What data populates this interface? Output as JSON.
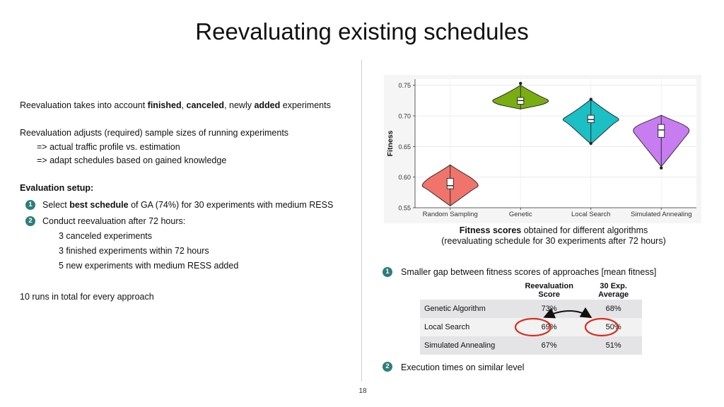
{
  "slide": {
    "title": "Reevaluating existing schedules",
    "page_number": "18"
  },
  "left": {
    "line1": {
      "pre": "Reevaluation takes into account ",
      "b1": "finished",
      "s1": ", ",
      "b2": "canceled",
      "s2": ", newly ",
      "b3": "added",
      "post": " experiments"
    },
    "line2": "Reevaluation adjusts (required) sample sizes of running experiments",
    "line3": "=> actual traffic profile vs. estimation",
    "line4": "=> adapt schedules based on gained knowledge",
    "setup_heading": "Evaluation setup:",
    "item1": {
      "badge": "1",
      "pre": "Select ",
      "bold": "best schedule",
      "post": " of GA (74%) for 30 experiments with medium RESS"
    },
    "item2": {
      "badge": "2",
      "text": "Conduct reevaluation after 72 hours:"
    },
    "sub1": "3 canceled experiments",
    "sub2": "3 finished experiments within 72 hours",
    "sub3": "5 new experiments with medium RESS added",
    "runs": "10 runs in total for every approach"
  },
  "chart_data": {
    "type": "violin",
    "title": "",
    "xlabel": "",
    "ylabel": "Fitness",
    "ylim": [
      0.55,
      0.76
    ],
    "yticks": [
      "0.55",
      "0.60",
      "0.65",
      "0.70",
      "0.75"
    ],
    "grid": true,
    "categories": [
      "Random Sampling",
      "Genetic",
      "Local Search",
      "Simulated Annealing"
    ],
    "series": [
      {
        "category": "Random Sampling",
        "color": "#f0746b",
        "min": 0.553,
        "q1": 0.581,
        "median": 0.586,
        "q3": 0.598,
        "max": 0.62,
        "outliers": []
      },
      {
        "category": "Genetic",
        "color": "#7aad12",
        "min": 0.711,
        "q1": 0.719,
        "median": 0.725,
        "q3": 0.73,
        "max": 0.75,
        "outliers": [
          0.753
        ]
      },
      {
        "category": "Local Search",
        "color": "#1bbfc4",
        "min": 0.654,
        "q1": 0.689,
        "median": 0.694,
        "q3": 0.701,
        "max": 0.727,
        "outliers": [
          0.727,
          0.655
        ]
      },
      {
        "category": "Simulated Annealing",
        "color": "#c77cf0",
        "min": 0.617,
        "q1": 0.665,
        "median": 0.677,
        "q3": 0.686,
        "max": 0.701,
        "outliers": [
          0.615
        ]
      }
    ]
  },
  "caption": {
    "bold": "Fitness scores",
    "rest": " obtained for different algorithms",
    "line2": "(reevaluating schedule for 30 experiments after 72 hours)"
  },
  "right": {
    "point1": {
      "badge": "1",
      "text": "Smaller gap between fitness scores of approaches [mean fitness]"
    },
    "point2": {
      "badge": "2",
      "text": "Execution times on similar level"
    }
  },
  "table": {
    "headers": [
      "",
      "Reevaluation Score",
      "30 Exp. Average"
    ],
    "rows": [
      [
        "Genetic Algorithm",
        "73%",
        "68%"
      ],
      [
        "Local Search",
        "69%",
        "50%"
      ],
      [
        "Simulated Annealing",
        "67%",
        "51%"
      ]
    ]
  },
  "colors": {
    "badge": "#2e7d78",
    "highlight_circle": "#d9301f"
  }
}
